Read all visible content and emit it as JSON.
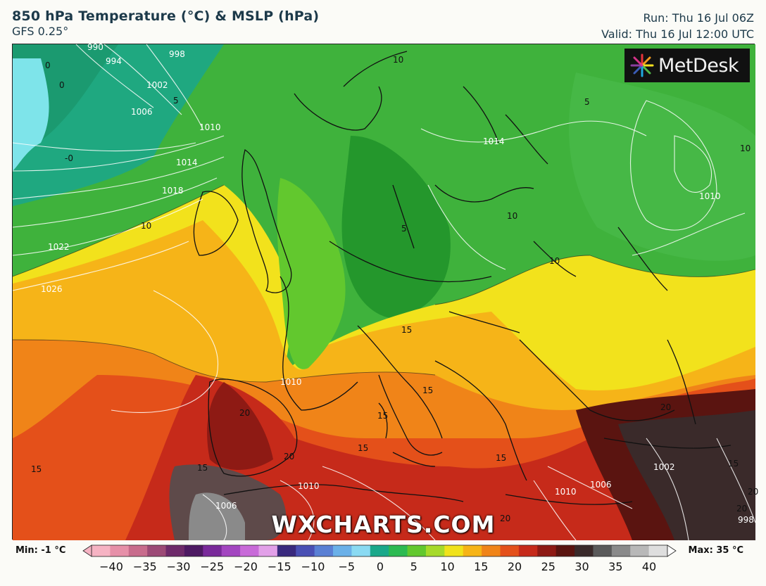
{
  "header": {
    "title": "850 hPa Temperature (°C) & MSLP (hPa)",
    "model": "GFS 0.25°",
    "run": "Run: Thu 16 Jul 06Z",
    "valid": "Valid: Thu 16 Jul 12:00 UTC"
  },
  "logo": {
    "text": "MetDesk"
  },
  "watermark": "WXCHARTS.COM",
  "legend": {
    "min_label": "Min: -1 °C",
    "max_label": "Max: 35 °C",
    "ticks": [
      "−40",
      "−35",
      "−30",
      "−25",
      "−20",
      "−15",
      "−10",
      "−5",
      "0",
      "5",
      "10",
      "15",
      "20",
      "25",
      "30",
      "35",
      "40"
    ],
    "colors": [
      "#f6b3c3",
      "#e690a8",
      "#c86c8c",
      "#9c4a76",
      "#6e2a6a",
      "#4e1a62",
      "#7a2a9a",
      "#a346c0",
      "#c86ad8",
      "#e2a0e8",
      "#3a2a7e",
      "#4a50b4",
      "#5a80d4",
      "#6ab0e8",
      "#8adaf2",
      "#1aa88a",
      "#2cba52",
      "#62c82e",
      "#a6da2a",
      "#f0e21a",
      "#f6b416",
      "#f08418",
      "#e4501a",
      "#c62a1a",
      "#8e1a14",
      "#5a1410",
      "#3a2a2a",
      "#5a5a5a",
      "#8a8a8a",
      "#b8b8b8",
      "#dedede"
    ]
  },
  "map": {
    "isobar_labels": [
      "990",
      "994",
      "998",
      "1002",
      "1006",
      "1010",
      "1014",
      "1018",
      "1022",
      "1026",
      "1014",
      "1010",
      "1010",
      "1010",
      "1006",
      "1006",
      "1002",
      "998",
      "1010"
    ],
    "temp_labels": [
      "0",
      "0",
      "5",
      "-0",
      "10",
      "10",
      "5",
      "10",
      "5",
      "10",
      "10",
      "15",
      "15",
      "15",
      "20",
      "15",
      "15",
      "20",
      "15",
      "20",
      "20",
      "15",
      "15",
      "20",
      "20"
    ]
  }
}
